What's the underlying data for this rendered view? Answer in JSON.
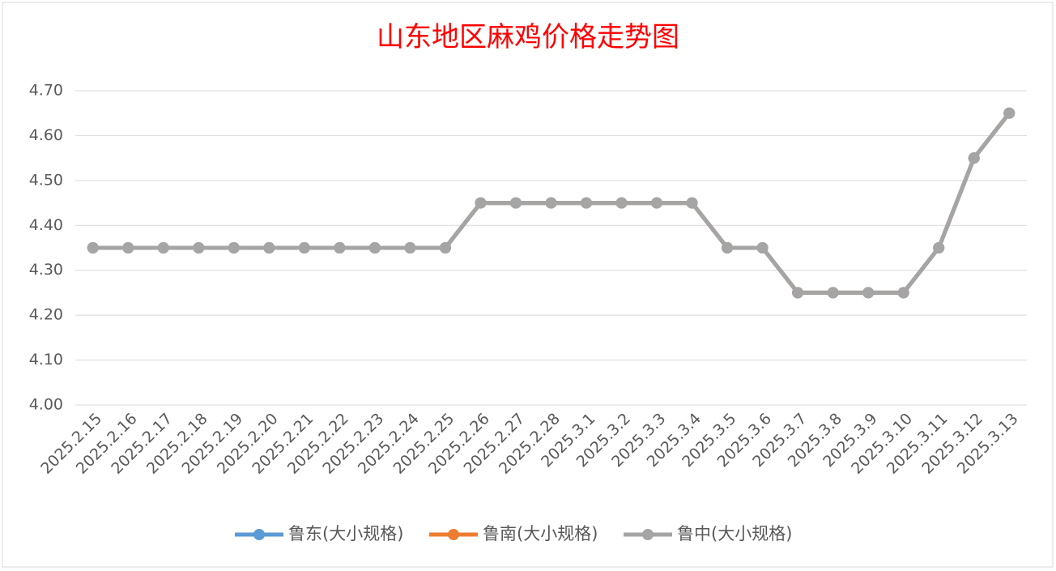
{
  "chart_data": {
    "type": "line",
    "title": "山东地区麻鸡价格走势图",
    "categories": [
      "2025.2.15",
      "2025.2.16",
      "2025.2.17",
      "2025.2.18",
      "2025.2.19",
      "2025.2.20",
      "2025.2.21",
      "2025.2.22",
      "2025.2.23",
      "2025.2.24",
      "2025.2.25",
      "2025.2.26",
      "2025.2.27",
      "2025.2.28",
      "2025.3.1",
      "2025.3.2",
      "2025.3.3",
      "2025.3.4",
      "2025.3.5",
      "2025.3.6",
      "2025.3.7",
      "2025.3.8",
      "2025.3.9",
      "2025.3.10",
      "2025.3.11",
      "2025.3.12",
      "2025.3.13"
    ],
    "series": [
      {
        "name": "鲁东(大小规格)",
        "color": "#5b9bd5",
        "values": [
          4.35,
          4.35,
          4.35,
          4.35,
          4.35,
          4.35,
          4.35,
          4.35,
          4.35,
          4.35,
          4.35,
          4.45,
          4.45,
          4.45,
          4.45,
          4.45,
          4.45,
          4.45,
          4.35,
          4.35,
          4.25,
          4.25,
          4.25,
          4.25,
          4.35,
          4.55,
          4.65
        ]
      },
      {
        "name": "鲁南(大小规格)",
        "color": "#ed7d31",
        "values": [
          4.35,
          4.35,
          4.35,
          4.35,
          4.35,
          4.35,
          4.35,
          4.35,
          4.35,
          4.35,
          4.35,
          4.45,
          4.45,
          4.45,
          4.45,
          4.45,
          4.45,
          4.45,
          4.35,
          4.35,
          4.25,
          4.25,
          4.25,
          4.25,
          4.35,
          4.55,
          4.65
        ]
      },
      {
        "name": "鲁中(大小规格)",
        "color": "#a5a5a5",
        "values": [
          4.35,
          4.35,
          4.35,
          4.35,
          4.35,
          4.35,
          4.35,
          4.35,
          4.35,
          4.35,
          4.35,
          4.45,
          4.45,
          4.45,
          4.45,
          4.45,
          4.45,
          4.45,
          4.35,
          4.35,
          4.25,
          4.25,
          4.25,
          4.25,
          4.35,
          4.55,
          4.65
        ]
      }
    ],
    "ylim": [
      4.0,
      4.7
    ],
    "yticks": [
      {
        "value": 4.0,
        "label": "4.00"
      },
      {
        "value": 4.1,
        "label": "4.10"
      },
      {
        "value": 4.2,
        "label": "4.20"
      },
      {
        "value": 4.3,
        "label": "4.30"
      },
      {
        "value": 4.4,
        "label": "4.40"
      },
      {
        "value": 4.5,
        "label": "4.50"
      },
      {
        "value": 4.6,
        "label": "4.60"
      },
      {
        "value": 4.7,
        "label": "4.70"
      }
    ],
    "grid": true,
    "legend": "bottom"
  }
}
